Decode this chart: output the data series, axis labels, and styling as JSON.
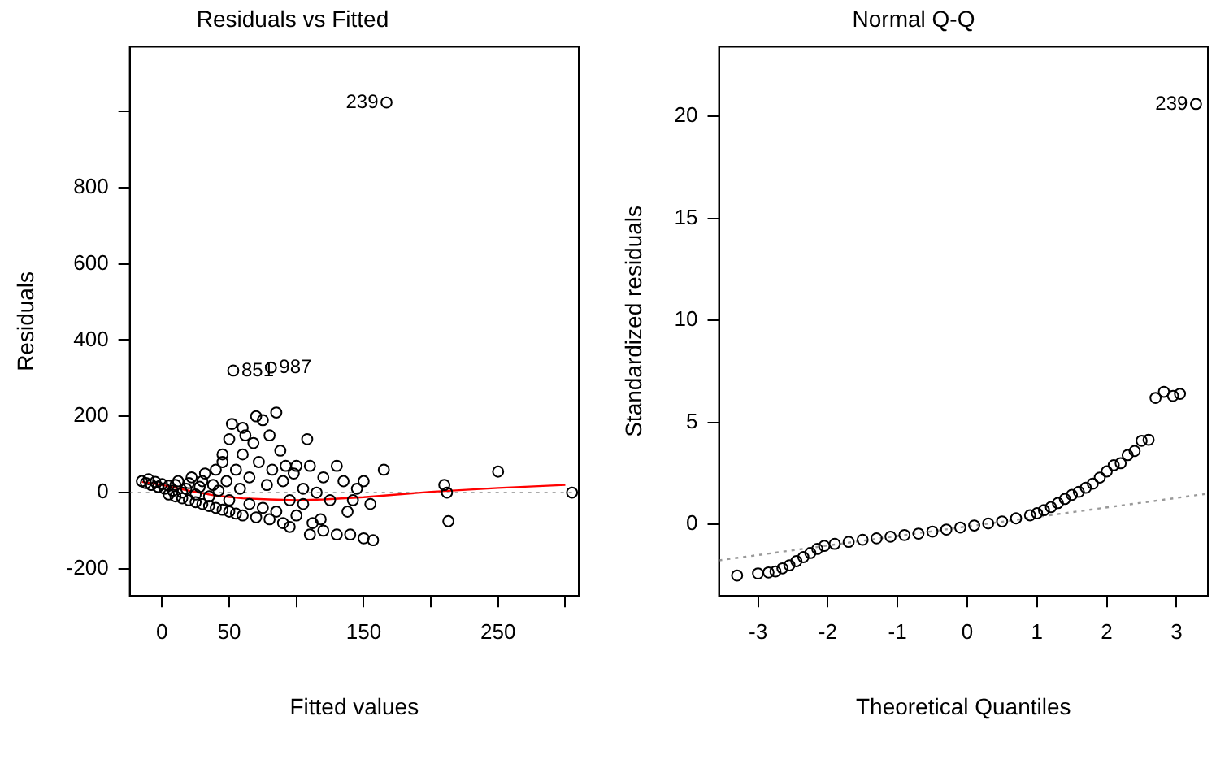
{
  "chart_data": [
    {
      "type": "scatter",
      "title": "Residuals vs Fitted",
      "xlabel": "Fitted values",
      "ylabel": "Residuals",
      "xlim": [
        -24,
        310
      ],
      "ylim": [
        -271,
        1169
      ],
      "xticks": [
        0,
        50,
        {
          "value": 100,
          "label": null
        },
        150,
        {
          "value": 200,
          "label": null
        },
        250,
        {
          "value": 300,
          "label": null
        }
      ],
      "yticks": [
        -200,
        0,
        200,
        400,
        600,
        800,
        {
          "value": 1000,
          "label": null
        }
      ],
      "grid": false,
      "legend": false,
      "marker": "circle",
      "ref_lines": [
        {
          "axis": "y",
          "value": 0,
          "color": "#aaaaaa",
          "line_style": "dotted"
        }
      ],
      "annotations": [
        {
          "text": "239",
          "x": 167,
          "y": 1023
        },
        {
          "text": "851",
          "x": 53,
          "y": 320
        },
        {
          "text": "987",
          "x": 81,
          "y": 328
        }
      ],
      "series": [
        {
          "type": "scatter",
          "color": "#000000",
          "x": [
            -15,
            -12,
            -10,
            -8,
            -5,
            -3,
            0,
            2,
            5,
            5,
            8,
            10,
            10,
            12,
            15,
            15,
            18,
            20,
            20,
            22,
            25,
            25,
            28,
            30,
            30,
            32,
            35,
            35,
            38,
            40,
            40,
            42,
            45,
            45,
            45,
            48,
            50,
            50,
            50,
            52,
            55,
            55,
            58,
            60,
            60,
            60,
            62,
            65,
            65,
            68,
            70,
            70,
            72,
            75,
            75,
            78,
            80,
            80,
            82,
            85,
            85,
            88,
            90,
            90,
            92,
            95,
            95,
            98,
            100,
            100,
            105,
            105,
            108,
            110,
            110,
            112,
            115,
            118,
            120,
            120,
            125,
            130,
            130,
            135,
            138,
            140,
            142,
            145,
            150,
            150,
            155,
            157,
            165,
            210,
            212,
            213,
            250,
            305,
            53,
            81,
            167
          ],
          "values": [
            30,
            25,
            35,
            20,
            28,
            15,
            22,
            10,
            18,
            -5,
            5,
            20,
            -10,
            30,
            0,
            -15,
            10,
            -20,
            25,
            40,
            -5,
            -25,
            15,
            -30,
            30,
            50,
            -10,
            -35,
            20,
            -40,
            60,
            5,
            -45,
            80,
            100,
            30,
            -50,
            -20,
            140,
            180,
            60,
            -55,
            10,
            -60,
            100,
            170,
            150,
            -30,
            40,
            130,
            -65,
            200,
            80,
            -40,
            190,
            20,
            -70,
            150,
            60,
            -50,
            210,
            110,
            -80,
            30,
            70,
            -20,
            -90,
            50,
            -60,
            70,
            -30,
            10,
            140,
            -110,
            70,
            -80,
            0,
            -70,
            40,
            -100,
            -20,
            -110,
            70,
            30,
            -50,
            -110,
            -20,
            10,
            -120,
            30,
            -30,
            -125,
            60,
            20,
            0,
            -75,
            55,
            0,
            320,
            328,
            1023
          ]
        },
        {
          "type": "line",
          "color": "#ff0000",
          "marker": "none",
          "x": [
            -15,
            0,
            20,
            40,
            60,
            80,
            100,
            120,
            150,
            200,
            250,
            300
          ],
          "values": [
            28,
            20,
            5,
            -8,
            -15,
            -18,
            -20,
            -18,
            -12,
            2,
            12,
            20
          ]
        }
      ]
    },
    {
      "type": "scatter",
      "title": "Normal Q-Q",
      "xlabel": "Theoretical Quantiles",
      "ylabel": "Standardized residuals",
      "xlim": [
        -3.56,
        3.45
      ],
      "ylim": [
        -3.5,
        23.4
      ],
      "xticks": [
        -3,
        -2,
        -1,
        0,
        1,
        2,
        3
      ],
      "yticks": [
        0,
        5,
        10,
        15,
        20
      ],
      "grid": false,
      "legend": false,
      "marker": "circle",
      "annotations": [
        {
          "text": "239",
          "x": 3.28,
          "y": 20.6
        }
      ],
      "series": [
        {
          "type": "scatter",
          "color": "#000000",
          "x": [
            -3.3,
            -3.0,
            -2.85,
            -2.75,
            -2.65,
            -2.55,
            -2.45,
            -2.35,
            -2.25,
            -2.15,
            -2.05,
            -1.9,
            -1.7,
            -1.5,
            -1.3,
            -1.1,
            -0.9,
            -0.7,
            -0.5,
            -0.3,
            -0.1,
            0.1,
            0.3,
            0.5,
            0.7,
            0.9,
            1.0,
            1.1,
            1.2,
            1.3,
            1.4,
            1.5,
            1.6,
            1.7,
            1.8,
            1.9,
            2.0,
            2.1,
            2.2,
            2.3,
            2.4,
            2.5,
            2.6,
            2.7,
            2.82,
            2.95,
            3.05,
            3.28
          ],
          "values": [
            -2.5,
            -2.4,
            -2.35,
            -2.3,
            -2.15,
            -2.0,
            -1.8,
            -1.6,
            -1.4,
            -1.2,
            -1.05,
            -0.95,
            -0.85,
            -0.75,
            -0.68,
            -0.6,
            -0.52,
            -0.45,
            -0.35,
            -0.25,
            -0.15,
            -0.05,
            0.05,
            0.15,
            0.3,
            0.45,
            0.55,
            0.7,
            0.85,
            1.05,
            1.25,
            1.45,
            1.6,
            1.8,
            2.0,
            2.3,
            2.6,
            2.9,
            3.0,
            3.4,
            3.6,
            4.1,
            4.15,
            6.2,
            6.5,
            6.3,
            6.4,
            20.6
          ]
        },
        {
          "type": "line",
          "color": "#999999",
          "marker": "none",
          "line_style": "dotted",
          "x": [
            -3.56,
            3.45
          ],
          "values": [
            -1.76,
            1.51
          ]
        }
      ]
    }
  ]
}
